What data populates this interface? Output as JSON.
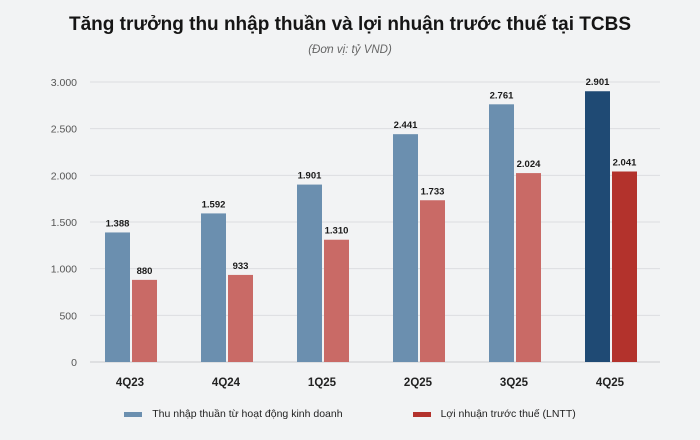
{
  "chart_data": {
    "type": "bar",
    "title": "Tăng trưởng thu nhập thuần và lợi nhuận trước thuế tại TCBS",
    "subtitle": "(Đơn vị: tỷ VND)",
    "xlabel": "",
    "ylabel": "",
    "ylim": [
      0,
      3000
    ],
    "yticks": [
      0,
      500,
      1000,
      1500,
      2000,
      2500,
      3000
    ],
    "ytick_labels": [
      "0",
      "500",
      "1.000",
      "1.500",
      "2.000",
      "2.500",
      "3.000"
    ],
    "grid": true,
    "legend_position": "bottom",
    "categories": [
      "4Q23",
      "4Q24",
      "1Q25",
      "2Q25",
      "3Q25",
      "4Q25"
    ],
    "series": [
      {
        "name": "Thu nhập thuần từ hoạt động kinh doanh",
        "values": [
          1388,
          1592,
          1901,
          2441,
          2761,
          2901
        ],
        "labels": [
          "1.388",
          "1.592",
          "1.901",
          "2.441",
          "2.761",
          "2.901"
        ],
        "color": "#6b8faf",
        "highlight_color": "#1f4a74"
      },
      {
        "name": "Lợi nhuận trước thuế (LNTT)",
        "values": [
          880,
          933,
          1310,
          1733,
          2024,
          2041
        ],
        "labels": [
          "880",
          "933",
          "1.310",
          "1.733",
          "2.024",
          "2.041"
        ],
        "color": "#c96a66",
        "highlight_color": "#b3322c"
      }
    ],
    "highlight_category": "4Q25"
  }
}
